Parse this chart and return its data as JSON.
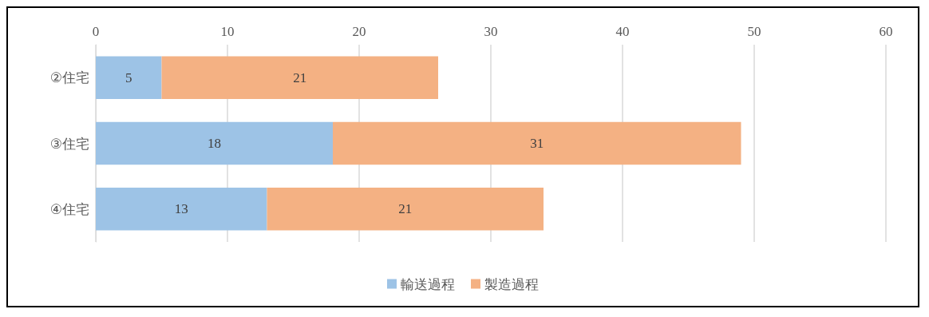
{
  "chart_data": {
    "type": "bar",
    "orientation": "horizontal",
    "stacked": true,
    "categories": [
      "②住宅",
      "③住宅",
      "④住宅"
    ],
    "series": [
      {
        "name": "輸送過程",
        "color": "#9dc3e6",
        "values": [
          5,
          18,
          13
        ]
      },
      {
        "name": "製造過程",
        "color": "#f4b183",
        "values": [
          21,
          31,
          21
        ]
      }
    ],
    "xlim": [
      0,
      60
    ],
    "xticks": [
      0,
      10,
      20,
      30,
      40,
      50,
      60
    ],
    "grid": "x",
    "legend": "bottom",
    "data_labels": true
  }
}
